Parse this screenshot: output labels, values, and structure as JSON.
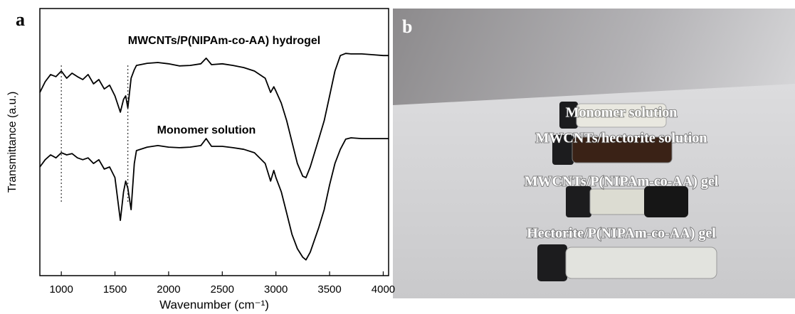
{
  "chart_data": {
    "type": "line",
    "panel_label": "a",
    "xlabel": "Wavenumber (cm⁻¹)",
    "ylabel": "Transmittance (a.u.)",
    "x": [
      800,
      850,
      900,
      950,
      1000,
      1050,
      1100,
      1150,
      1200,
      1250,
      1300,
      1350,
      1400,
      1450,
      1500,
      1550,
      1580,
      1600,
      1620,
      1650,
      1680,
      1700,
      1800,
      1900,
      2000,
      2100,
      2200,
      2300,
      2350,
      2400,
      2500,
      2600,
      2700,
      2800,
      2900,
      2950,
      2980,
      3000,
      3050,
      3100,
      3150,
      3200,
      3250,
      3280,
      3320,
      3400,
      3450,
      3500,
      3550,
      3600,
      3650,
      3700,
      3800,
      3900,
      4000,
      4050
    ],
    "series": [
      {
        "name": "MWCNTs/P(NIPAm-co-AA) hydrogel",
        "color": "#000000",
        "values": [
          68.6,
          72.6,
          75.3,
          74.5,
          76.6,
          73.9,
          75.8,
          74.5,
          73.4,
          75.3,
          71.8,
          73.4,
          69.9,
          71.3,
          67.3,
          61.2,
          66.0,
          67.3,
          62.8,
          73.9,
          77.1,
          78.7,
          79.5,
          79.8,
          79.3,
          78.5,
          78.7,
          79.3,
          81.4,
          79.0,
          79.3,
          78.7,
          77.9,
          76.6,
          73.9,
          68.6,
          70.7,
          69.1,
          64.6,
          58.0,
          50.0,
          42.0,
          37.2,
          36.7,
          40.7,
          51.3,
          58.0,
          67.3,
          76.6,
          82.4,
          83.2,
          83.0,
          83.0,
          82.7,
          82.4,
          82.4
        ]
      },
      {
        "name": "Monomer solution",
        "color": "#000000",
        "values": [
          40.7,
          43.4,
          45.2,
          44.1,
          46.0,
          45.2,
          45.7,
          44.1,
          43.4,
          44.1,
          42.0,
          43.4,
          39.9,
          40.7,
          36.7,
          20.7,
          31.4,
          35.4,
          32.7,
          24.7,
          42.0,
          46.8,
          48.1,
          48.7,
          48.1,
          47.9,
          48.1,
          48.7,
          51.3,
          48.4,
          48.4,
          47.9,
          47.3,
          46.0,
          42.0,
          35.4,
          39.4,
          36.7,
          31.4,
          23.4,
          15.4,
          10.1,
          6.9,
          5.9,
          8.8,
          18.1,
          24.7,
          34.0,
          42.0,
          47.3,
          51.1,
          51.6,
          51.3,
          51.3,
          51.3,
          51.3
        ]
      }
    ],
    "xlim": [
      800,
      4050
    ],
    "ylim": [
      0,
      100
    ],
    "xticks": [
      1000,
      1500,
      2000,
      2500,
      3000,
      3500,
      4000
    ],
    "reference_lines": [
      1000,
      1620
    ]
  },
  "photo": {
    "panel_label": "b",
    "labels": [
      "Monomer solution",
      "MWCNTs/hectorite solution",
      "MWCNTs/P(NIPAm-co-AA) gel",
      "Hectorite/P(NIPAm-co-AA) gel"
    ]
  }
}
